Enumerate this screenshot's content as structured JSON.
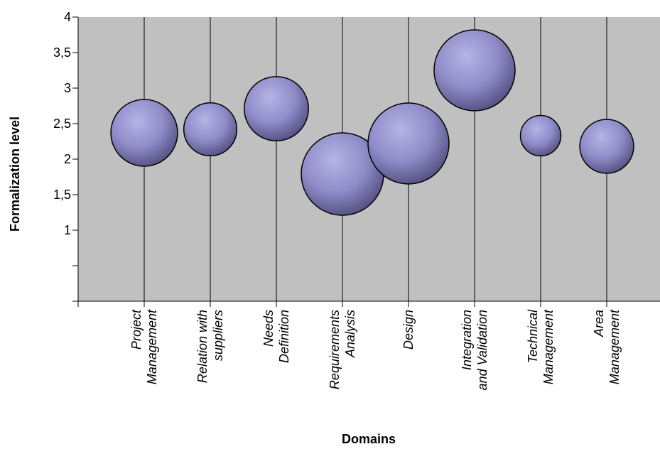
{
  "chart_data": {
    "type": "bubble",
    "xlabel": "Domains",
    "ylabel": "Formalization level",
    "ylim": [
      0,
      4
    ],
    "y_tick_labels": [
      {
        "value": 4,
        "label": "4"
      },
      {
        "value": 3.5,
        "label": "3,5"
      },
      {
        "value": 3,
        "label": "3"
      },
      {
        "value": 2.5,
        "label": "2,5"
      },
      {
        "value": 2,
        "label": "2"
      },
      {
        "value": 1.5,
        "label": "1,5"
      },
      {
        "value": 1,
        "label": "1"
      }
    ],
    "y_gridlines_unlabeled": [
      0.5
    ],
    "grid": false,
    "categories": [
      {
        "label": [
          "Project",
          "Management"
        ],
        "x": 1,
        "y": 2.37,
        "size": 0.95
      },
      {
        "label": [
          "Relation with",
          "suppliers"
        ],
        "x": 2,
        "y": 2.42,
        "size": 0.6
      },
      {
        "label": [
          "Needs",
          "Definition"
        ],
        "x": 3,
        "y": 2.71,
        "size": 0.88
      },
      {
        "label": [
          "Requirements",
          "Analysis"
        ],
        "x": 4,
        "y": 1.79,
        "size": 1.45
      },
      {
        "label": [
          "Design"
        ],
        "x": 5,
        "y": 2.22,
        "size": 1.4
      },
      {
        "label": [
          "Integration",
          "and Validation"
        ],
        "x": 6,
        "y": 3.25,
        "size": 1.4
      },
      {
        "label": [
          "Technical",
          "Management"
        ],
        "x": 7,
        "y": 2.33,
        "size": 0.35
      },
      {
        "label": [
          "Area",
          "Management"
        ],
        "x": 8,
        "y": 2.18,
        "size": 0.62
      }
    ],
    "colors": {
      "plot_background": "#c0c0c0",
      "bubble_light": "#b6b3e6",
      "bubble_mid": "#8f8cc9",
      "bubble_dark": "#545081",
      "bubble_edge": "#000000"
    }
  }
}
